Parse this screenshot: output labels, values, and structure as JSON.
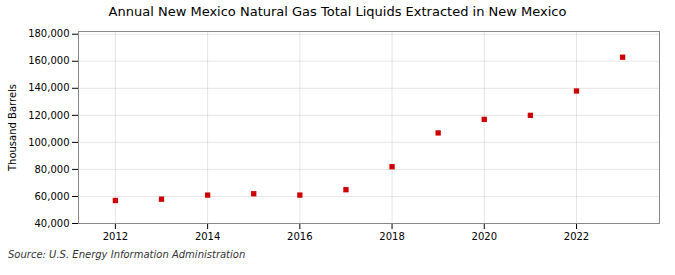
{
  "chart_data": {
    "type": "scatter",
    "title": "Annual New Mexico Natural Gas Total Liquids Extracted in New Mexico",
    "ylabel": "Thousand Barrels",
    "source": "Source: U.S. Energy Information Administration",
    "x": [
      2012,
      2013,
      2014,
      2015,
      2016,
      2017,
      2018,
      2019,
      2020,
      2021,
      2022,
      2023
    ],
    "values": [
      57000,
      58000,
      61000,
      62000,
      61000,
      65000,
      82000,
      107000,
      117000,
      120000,
      138000,
      163000
    ],
    "color": "#cc0000",
    "marker": "square",
    "grid": true,
    "xlim": [
      2011.2,
      2023.8
    ],
    "xticks": [
      2012,
      2014,
      2016,
      2018,
      2020,
      2022
    ],
    "ylim": [
      40000,
      182000
    ],
    "yticks": [
      {
        "value": 40000,
        "label": "40,000"
      },
      {
        "value": 60000,
        "label": "60,000"
      },
      {
        "value": 80000,
        "label": "80,000"
      },
      {
        "value": 100000,
        "label": "100,000"
      },
      {
        "value": 120000,
        "label": "120,000"
      },
      {
        "value": 140000,
        "label": "140,000"
      },
      {
        "value": 160000,
        "label": "160,000"
      },
      {
        "value": 180000,
        "label": "180,000"
      }
    ]
  }
}
